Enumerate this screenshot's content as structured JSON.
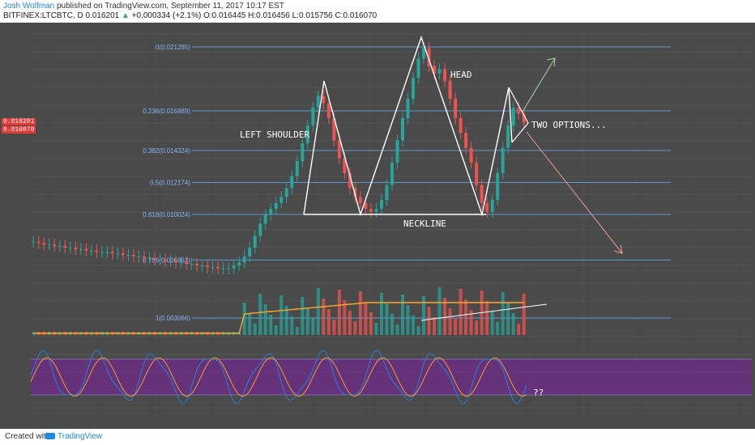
{
  "header": {
    "author": "Josh Wolfman",
    "published_text": "published on TradingView.com, September 11, 2017 10:17 EST",
    "symbol_line": {
      "symbol": "BITFINEX:LTCBTC, D",
      "last": "0.016201",
      "change": "+0.000334 (+2.1%)",
      "open": "O:0.016445",
      "high": "H:0.016456",
      "low": "L:0.015756",
      "close": "C:0.016070"
    }
  },
  "price_tags": {
    "tag1": "0.016201",
    "tag2": "0.016070"
  },
  "annotations": {
    "left_shoulder": "LEFT SHOULDER",
    "head": "HEAD",
    "neckline": "NECKLINE",
    "two_options": "TWO OPTIONS...",
    "question": "??"
  },
  "fib_levels": [
    {
      "label": "0(0.021285)",
      "value": 0.021285
    },
    {
      "label": "0.236(0.016989)",
      "value": 0.016989
    },
    {
      "label": "0.382(0.014324)",
      "value": 0.014324
    },
    {
      "label": "0.5(0.012174)",
      "value": 0.012174
    },
    {
      "label": "0.618(0.010024)",
      "value": 0.010024
    },
    {
      "label": "0.786(0.006963)",
      "value": 0.006963
    },
    {
      "label": "1(0.003066)",
      "value": 0.003066
    }
  ],
  "colors": {
    "background": "#4a4a4a",
    "up_candle": "#26a69a",
    "down_candle": "#ef5350",
    "fib_line": "#5b9bd5",
    "pattern_line": "#ffffff",
    "volume_ma": "#ffa726",
    "stoch_band": "#7b1fa2",
    "stoch_k": "#1e88e5",
    "stoch_d": "#ffa726",
    "arrow_up": "#a5d6a7",
    "arrow_down": "#ef9a9a"
  },
  "chart_data": {
    "type": "candlestick",
    "title": "",
    "symbol": "BITFINEX:LTCBTC",
    "timeframe": "D",
    "pattern": "head and shoulders",
    "fib_retracement": [
      0.021285,
      0.016989,
      0.014324,
      0.012174,
      0.010024,
      0.006963,
      0.003066
    ],
    "close_path": [
      0.0082,
      0.0081,
      0.008,
      0.008,
      0.0079,
      0.0079,
      0.0078,
      0.0078,
      0.0077,
      0.0077,
      0.0076,
      0.0076,
      0.0075,
      0.0075,
      0.0075,
      0.0074,
      0.0074,
      0.0073,
      0.0073,
      0.0072,
      0.0072,
      0.0071,
      0.0071,
      0.007,
      0.007,
      0.0069,
      0.0069,
      0.0068,
      0.0068,
      0.0067,
      0.0067,
      0.0066,
      0.0066,
      0.0065,
      0.0065,
      0.0064,
      0.0064,
      0.0064,
      0.0066,
      0.0068,
      0.0072,
      0.0078,
      0.0086,
      0.0094,
      0.01,
      0.0104,
      0.0108,
      0.0112,
      0.0118,
      0.0126,
      0.0136,
      0.0148,
      0.016,
      0.0172,
      0.018,
      0.0175,
      0.0165,
      0.015,
      0.0138,
      0.0128,
      0.0118,
      0.0112,
      0.0108,
      0.0104,
      0.0102,
      0.0104,
      0.011,
      0.012,
      0.0135,
      0.015,
      0.0165,
      0.0178,
      0.0192,
      0.0205,
      0.0212,
      0.02,
      0.0195,
      0.0198,
      0.019,
      0.0178,
      0.0165,
      0.0155,
      0.0145,
      0.0135,
      0.012,
      0.0108,
      0.0102,
      0.011,
      0.0128,
      0.0145,
      0.016,
      0.0172,
      0.0168,
      0.0162
    ]
  }
}
